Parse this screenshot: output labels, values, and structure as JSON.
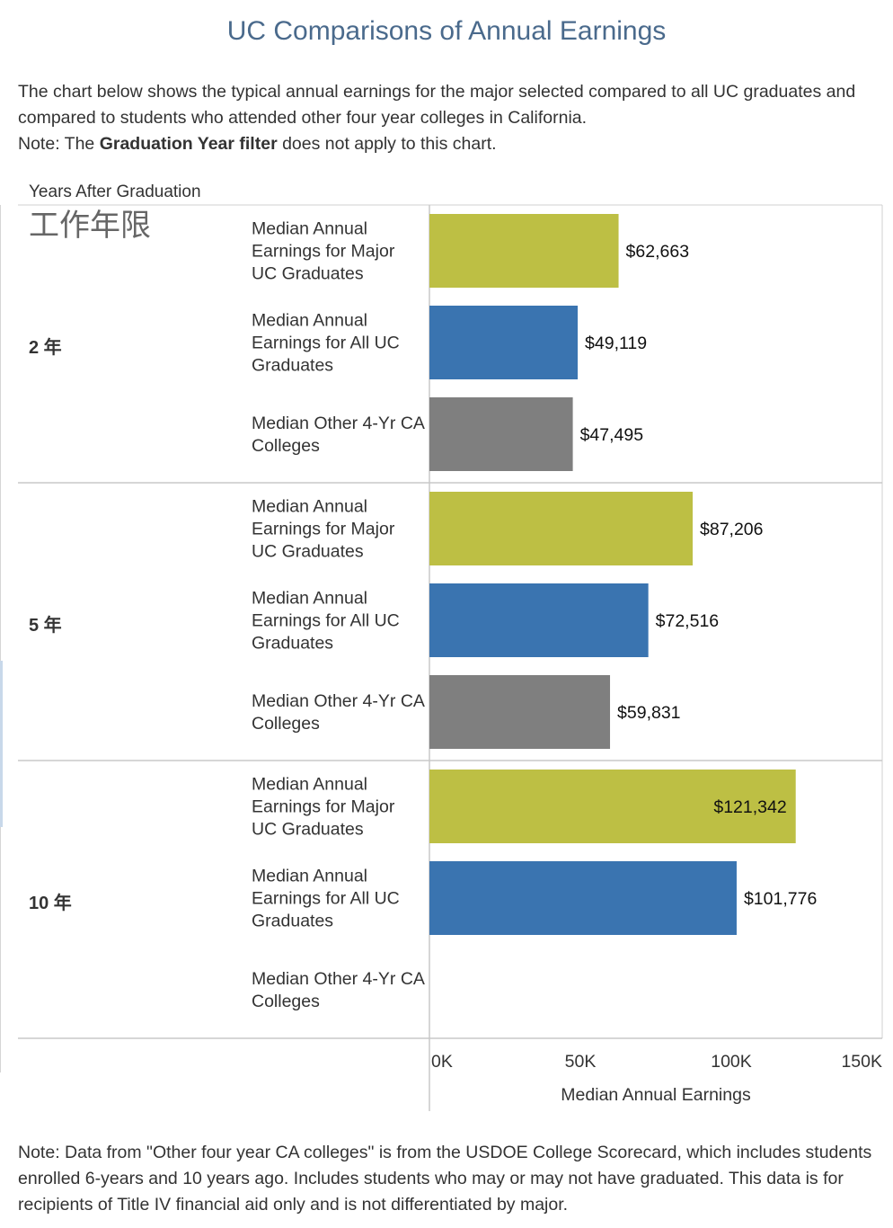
{
  "title": "UC Comparisons of Annual Earnings",
  "description": {
    "line1": "The chart below shows the typical annual earnings for the major selected compared to all UC graduates and compared to students who attended other four year colleges in California.",
    "note_prefix": "Note: The ",
    "note_bold": "Graduation Year filter",
    "note_suffix": " does not apply to this chart."
  },
  "footer_note": "Note: Data from \"Other four year CA colleges\" is from the USDOE College Scorecard, which includes students enrolled 6-years and 10 years ago. Includes students who may or may not have graduated. This data is for recipients of Title IV financial aid only and is not differentiated by major.",
  "colors": {
    "major": "#bdbf44",
    "all_uc": "#3a74b0",
    "other": "#7f7f7f",
    "title": "#4a6a8c"
  },
  "chart_data": {
    "type": "bar",
    "orientation": "horizontal",
    "row_header_title": "Years After Graduation",
    "row_header_sublabel": "工作年限",
    "xlabel": "Median Annual Earnings",
    "xlim": [
      0,
      150000
    ],
    "xticks": [
      {
        "value": 0,
        "label": "0K"
      },
      {
        "value": 50000,
        "label": "50K"
      },
      {
        "value": 100000,
        "label": "100K"
      },
      {
        "value": 150000,
        "label": "150K"
      }
    ],
    "groups": [
      {
        "label": "2 年",
        "bars": [
          {
            "category": "Median Annual Earnings for Major UC Graduates",
            "value": 62663,
            "label": "$62,663",
            "color_key": "major"
          },
          {
            "category": "Median Annual Earnings for All UC Graduates",
            "value": 49119,
            "label": "$49,119",
            "color_key": "all_uc"
          },
          {
            "category": "Median Other 4-Yr CA Colleges",
            "value": 47495,
            "label": "$47,495",
            "color_key": "other"
          }
        ]
      },
      {
        "label": "5 年",
        "bars": [
          {
            "category": "Median Annual Earnings for Major UC Graduates",
            "value": 87206,
            "label": "$87,206",
            "color_key": "major"
          },
          {
            "category": "Median Annual Earnings for All UC Graduates",
            "value": 72516,
            "label": "$72,516",
            "color_key": "all_uc"
          },
          {
            "category": "Median Other 4-Yr CA Colleges",
            "value": 59831,
            "label": "$59,831",
            "color_key": "other"
          }
        ]
      },
      {
        "label": "10 年",
        "bars": [
          {
            "category": "Median Annual Earnings for Major UC Graduates",
            "value": 121342,
            "label": "$121,342",
            "color_key": "major"
          },
          {
            "category": "Median Annual Earnings for All UC Graduates",
            "value": 101776,
            "label": "$101,776",
            "color_key": "all_uc"
          },
          {
            "category": "Median Other 4-Yr CA Colleges",
            "value": null,
            "label": "",
            "color_key": "other"
          }
        ]
      }
    ]
  }
}
